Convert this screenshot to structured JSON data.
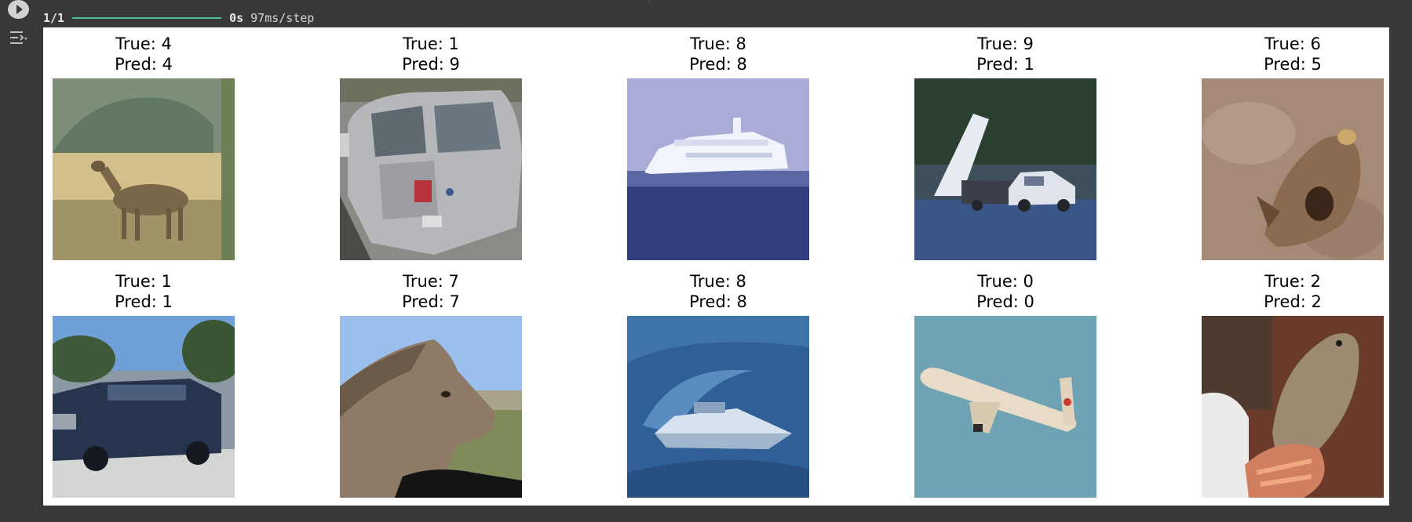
{
  "progress": {
    "count": "1/1",
    "fraction": 1.0,
    "time": "0s",
    "step": "97ms/step",
    "fill_color": "#4dbd98"
  },
  "toolbar": {
    "run_icon": "play-circle-icon",
    "output_icon": "output-menu-icon"
  },
  "predictions": [
    {
      "true_label": "True: 4",
      "pred_label": "Pred: 4",
      "subject": "deer"
    },
    {
      "true_label": "True: 1",
      "pred_label": "Pred: 9",
      "subject": "automobile"
    },
    {
      "true_label": "True: 8",
      "pred_label": "Pred: 8",
      "subject": "ship"
    },
    {
      "true_label": "True: 9",
      "pred_label": "Pred: 1",
      "subject": "truck"
    },
    {
      "true_label": "True: 6",
      "pred_label": "Pred: 5",
      "subject": "frog"
    },
    {
      "true_label": "True: 1",
      "pred_label": "Pred: 1",
      "subject": "automobile"
    },
    {
      "true_label": "True: 7",
      "pred_label": "Pred: 7",
      "subject": "horse"
    },
    {
      "true_label": "True: 8",
      "pred_label": "Pred: 8",
      "subject": "ship"
    },
    {
      "true_label": "True: 0",
      "pred_label": "Pred: 0",
      "subject": "airplane"
    },
    {
      "true_label": "True: 2",
      "pred_label": "Pred: 2",
      "subject": "bird"
    }
  ]
}
